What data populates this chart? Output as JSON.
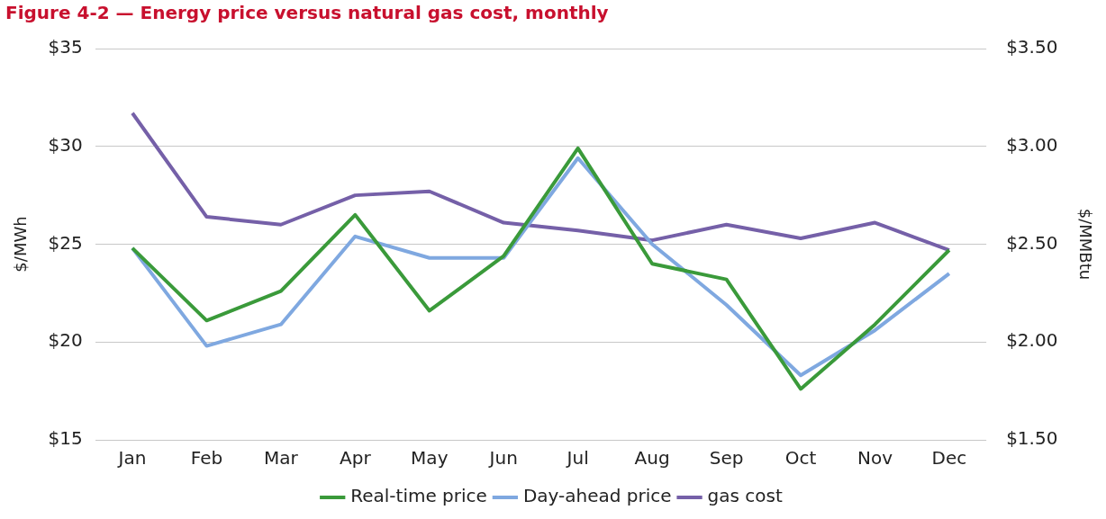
{
  "chart_data": {
    "type": "line",
    "title": "Figure 4-2 — Energy price versus natural gas cost, monthly",
    "ylabel": "$/MWh",
    "y2label": "$/MMBtu",
    "categories": [
      "Jan",
      "Feb",
      "Mar",
      "Apr",
      "May",
      "Jun",
      "Jul",
      "Aug",
      "Sep",
      "Oct",
      "Nov",
      "Dec"
    ],
    "series": [
      {
        "name": "Real-time price",
        "color": "#3a9a3a",
        "values": [
          24.8,
          21.1,
          22.6,
          26.5,
          21.6,
          24.4,
          29.9,
          24.0,
          23.2,
          17.6,
          20.9,
          24.7
        ]
      },
      {
        "name": "Day-ahead price",
        "color": "#7fa8e0",
        "values": [
          24.8,
          19.8,
          20.9,
          25.4,
          24.3,
          24.3,
          29.4,
          25.0,
          21.9,
          18.3,
          20.6,
          23.5
        ]
      },
      {
        "name": "gas cost",
        "color": "#7560a8",
        "axis": "y2",
        "values": [
          3.17,
          2.64,
          2.6,
          2.75,
          2.77,
          2.61,
          2.57,
          2.52,
          2.6,
          2.53,
          2.61,
          2.47
        ]
      }
    ],
    "ylim": [
      15,
      35
    ],
    "yticks": [
      {
        "value": 15,
        "label": "$15"
      },
      {
        "value": 20,
        "label": "$20"
      },
      {
        "value": 25,
        "label": "$25"
      },
      {
        "value": 30,
        "label": "$30"
      },
      {
        "value": 35,
        "label": "$35"
      }
    ],
    "y2lim": [
      1.5,
      3.5
    ],
    "y2ticks": [
      {
        "value": 1.5,
        "label": "$1.50"
      },
      {
        "value": 2,
        "label": "$2.00"
      },
      {
        "value": 2.5,
        "label": "$2.50"
      },
      {
        "value": 3,
        "label": "$3.00"
      },
      {
        "value": 3.5,
        "label": "$3.50"
      }
    ],
    "grid": "y",
    "legend": "bottom",
    "marker": "none",
    "line_style": "solid"
  }
}
